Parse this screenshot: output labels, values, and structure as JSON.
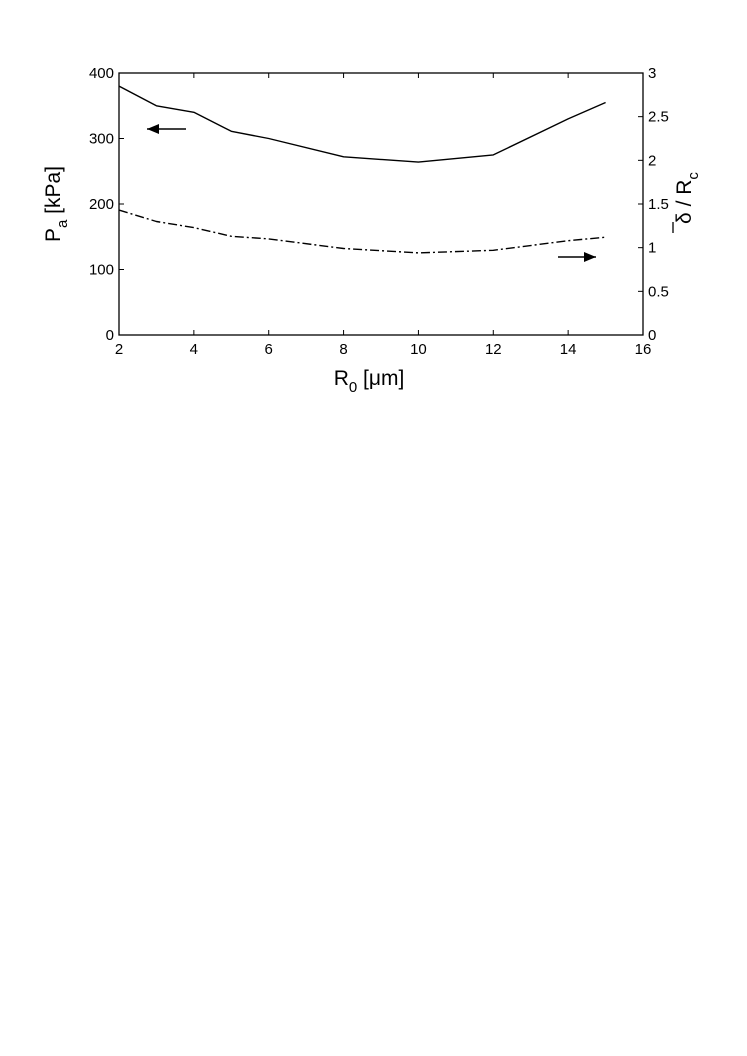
{
  "chart_data": {
    "type": "line",
    "title": "",
    "xlabel": {
      "main": "R",
      "sub": "0",
      "rest": " [μm]"
    },
    "ylabel_left": {
      "main": "P",
      "sub": "a",
      "rest": " [kPa]"
    },
    "ylabel_right": {
      "delta": "δ",
      "rest": " / R",
      "sub": "c"
    },
    "xlim": [
      2,
      16
    ],
    "ylim_left": [
      0,
      400
    ],
    "ylim_right": [
      0,
      3
    ],
    "xticks": [
      "2",
      "4",
      "6",
      "8",
      "10",
      "12",
      "14",
      "16"
    ],
    "yticks_left": [
      "0",
      "100",
      "200",
      "300",
      "400"
    ],
    "yticks_right": [
      "0",
      "0.5",
      "1",
      "1.5",
      "2",
      "2.5",
      "3"
    ],
    "grid": false,
    "series": [
      {
        "axis": "left",
        "style": "solid",
        "x": [
          2,
          3,
          4,
          5,
          6,
          8,
          10,
          12,
          14,
          15
        ],
        "values": [
          380,
          350,
          340,
          311,
          300,
          272,
          264,
          275,
          330,
          355
        ]
      },
      {
        "axis": "right",
        "style": "dash-dot",
        "x": [
          2,
          3,
          4,
          5,
          6,
          8,
          10,
          12,
          14,
          15
        ],
        "values": [
          1.43,
          1.3,
          1.23,
          1.13,
          1.1,
          0.99,
          0.94,
          0.97,
          1.08,
          1.12
        ]
      }
    ],
    "annotations": [
      {
        "type": "arrow",
        "direction": "left",
        "refers_to": "left axis"
      },
      {
        "type": "arrow",
        "direction": "right",
        "refers_to": "right axis"
      }
    ]
  }
}
